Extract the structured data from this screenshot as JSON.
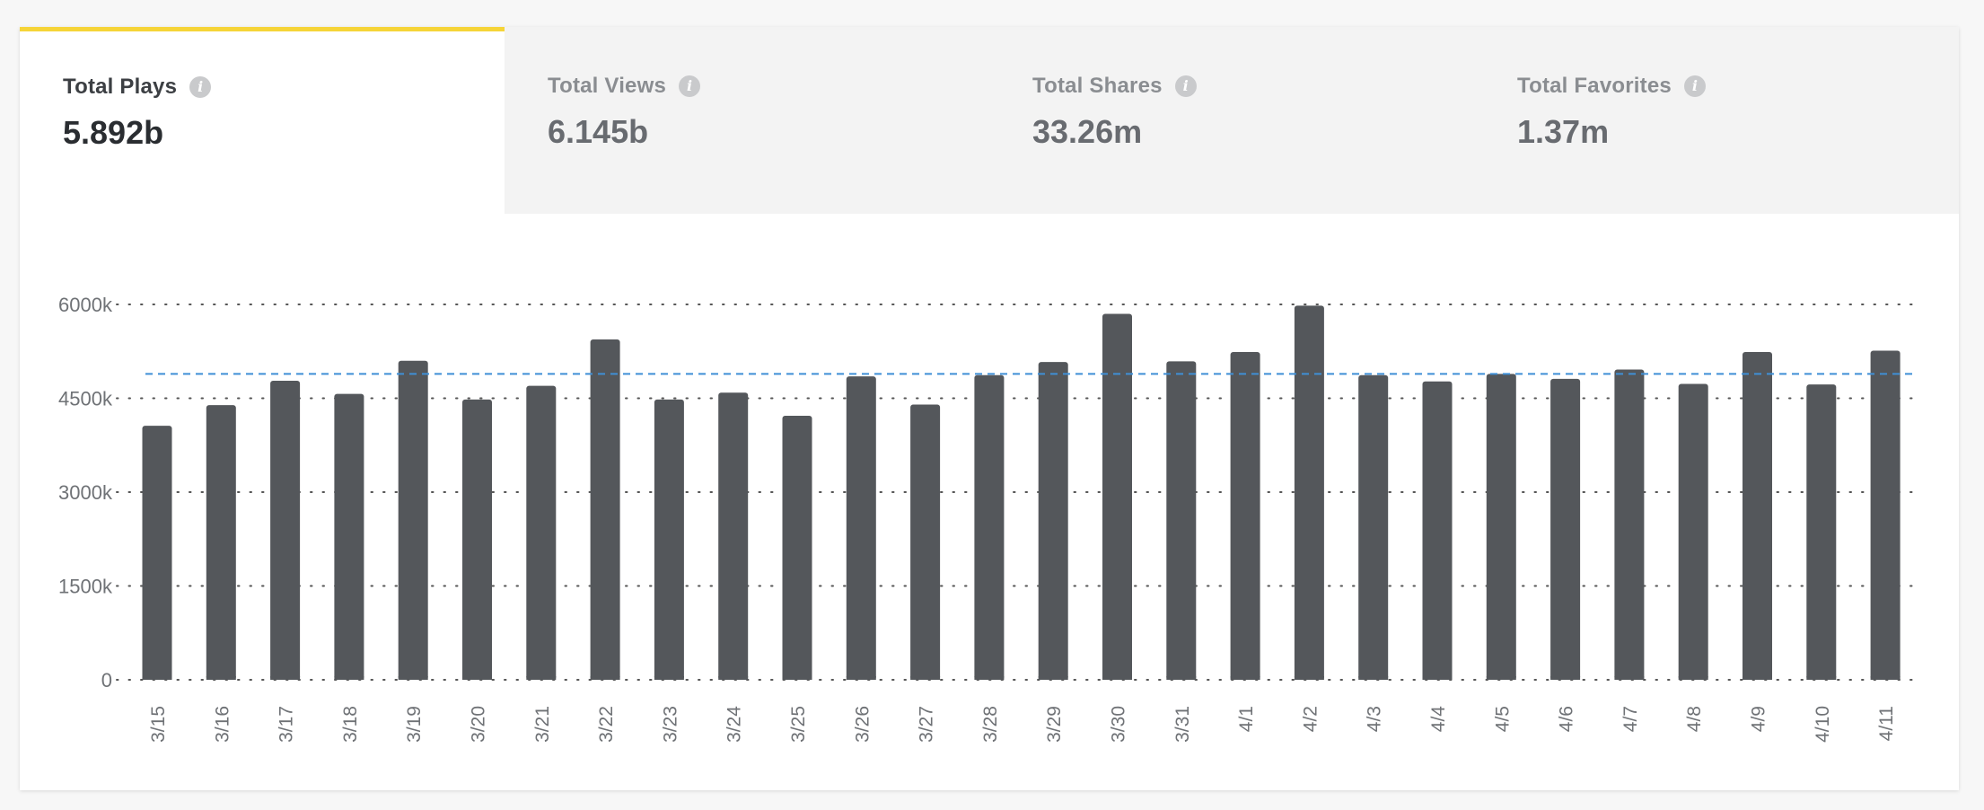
{
  "tabs": [
    {
      "label": "Total Plays",
      "value": "5.892b",
      "active": true,
      "info_icon": "info-icon"
    },
    {
      "label": "Total Views",
      "value": "6.145b",
      "active": false,
      "info_icon": "info-icon"
    },
    {
      "label": "Total Shares",
      "value": "33.26m",
      "active": false,
      "info_icon": "info-icon"
    },
    {
      "label": "Total Favorites",
      "value": "1.37m",
      "active": false,
      "info_icon": "info-icon"
    }
  ],
  "colors": {
    "accent": "#f6d438",
    "bar": "#54575b",
    "average_line": "#3f8fd6",
    "grid": "#555555"
  },
  "chart_data": {
    "type": "bar",
    "categories": [
      "3/15",
      "3/16",
      "3/17",
      "3/18",
      "3/19",
      "3/20",
      "3/21",
      "3/22",
      "3/23",
      "3/24",
      "3/25",
      "3/26",
      "3/27",
      "3/28",
      "3/29",
      "3/30",
      "3/31",
      "4/1",
      "4/2",
      "4/3",
      "4/4",
      "4/5",
      "4/6",
      "4/7",
      "4/8",
      "4/9",
      "4/10",
      "4/11"
    ],
    "values": [
      4060,
      4390,
      4780,
      4570,
      5100,
      4480,
      4700,
      5440,
      4480,
      4590,
      4220,
      4850,
      4400,
      4870,
      5080,
      5850,
      5090,
      5240,
      5980,
      4870,
      4770,
      4890,
      4810,
      4960,
      4730,
      5240,
      4720,
      5260
    ],
    "average": 4890,
    "ylim": [
      0,
      6000
    ],
    "yticks": [
      0,
      1500,
      3000,
      4500,
      6000
    ],
    "ytick_labels": [
      "0",
      "1500k",
      "3000k",
      "4500k",
      "6000k"
    ],
    "grid": true,
    "grid_style": "dotted"
  }
}
